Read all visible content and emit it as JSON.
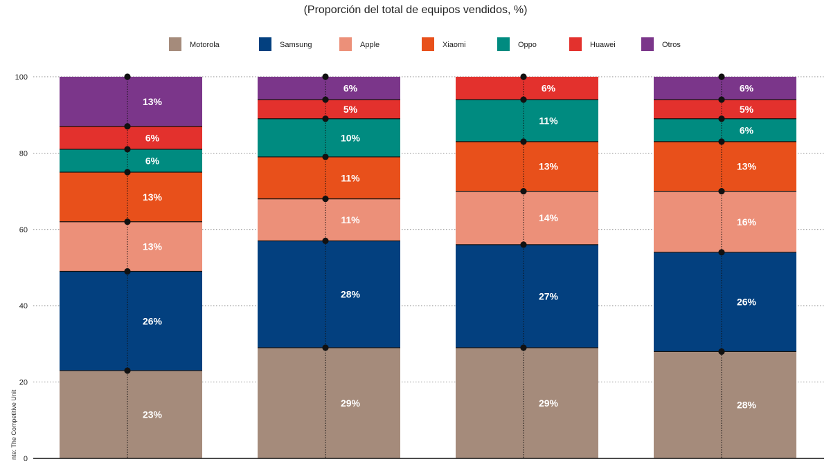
{
  "chart_data": {
    "type": "bar",
    "stacked": true,
    "title": "(Proporción del total de equipos vendidos, %)",
    "source": "nte: The Competitive Unit",
    "categories": [
      "",
      "",
      "",
      ""
    ],
    "ylim": [
      0,
      100
    ],
    "yticks": [
      0,
      20,
      40,
      60,
      80,
      100
    ],
    "grid": true,
    "legend_position": "top",
    "series": [
      {
        "name": "Motorola",
        "color": "#a58b7b",
        "values": [
          23,
          29,
          29,
          28
        ],
        "labels": [
          "23%",
          "29%",
          "29%",
          "28%"
        ]
      },
      {
        "name": "Samsung",
        "color": "#03407f",
        "values": [
          26,
          28,
          27,
          26
        ],
        "labels": [
          "26%",
          "28%",
          "27%",
          "26%"
        ]
      },
      {
        "name": "Apple",
        "color": "#ec9079",
        "values": [
          13,
          11,
          14,
          16
        ],
        "labels": [
          "13%",
          "11%",
          "14%",
          "16%"
        ]
      },
      {
        "name": "Xiaomi",
        "color": "#e8501b",
        "values": [
          13,
          11,
          13,
          13
        ],
        "labels": [
          "13%",
          "11%",
          "13%",
          "13%"
        ]
      },
      {
        "name": "Oppo",
        "color": "#008b80",
        "values": [
          6,
          10,
          11,
          6
        ],
        "labels": [
          "6%",
          "10%",
          "11%",
          "6%"
        ]
      },
      {
        "name": "Huawei",
        "color": "#e3312d",
        "values": [
          6,
          5,
          6,
          5
        ],
        "labels": [
          "6%",
          "5%",
          "6%",
          "5%"
        ]
      },
      {
        "name": "Otros",
        "color": "#7b368a",
        "values": [
          13,
          6,
          0,
          6
        ],
        "labels": [
          "13%",
          "6%",
          "",
          "6%"
        ]
      }
    ]
  }
}
